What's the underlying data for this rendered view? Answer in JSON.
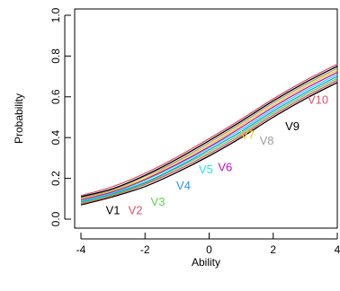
{
  "chart_data": {
    "type": "line",
    "xlabel": "Ability",
    "ylabel": "Probability",
    "xlim": [
      -4,
      4
    ],
    "ylim": [
      0,
      1
    ],
    "x_ticks": [
      -4,
      -2,
      0,
      2,
      4
    ],
    "x_tick_labels": [
      "-4",
      "-2",
      "0",
      "2",
      "4"
    ],
    "y_ticks": [
      0.0,
      0.2,
      0.4,
      0.6,
      0.8,
      1.0
    ],
    "y_tick_labels": [
      "0.0",
      "0.2",
      "0.4",
      "0.6",
      "0.8",
      "1.0"
    ],
    "grid": false,
    "x": [
      -4,
      -3,
      -2,
      -1,
      0,
      1,
      2,
      3,
      4
    ],
    "series": [
      {
        "name": "V1",
        "color": "#000000",
        "values": [
          0.07,
          0.11,
          0.16,
          0.23,
          0.31,
          0.4,
          0.5,
          0.59,
          0.67
        ]
      },
      {
        "name": "V2",
        "color": "#DF536B",
        "values": [
          0.075,
          0.115,
          0.17,
          0.24,
          0.32,
          0.41,
          0.51,
          0.6,
          0.68
        ]
      },
      {
        "name": "V3",
        "color": "#61D04F",
        "values": [
          0.08,
          0.12,
          0.175,
          0.25,
          0.33,
          0.42,
          0.52,
          0.61,
          0.69
        ]
      },
      {
        "name": "V4",
        "color": "#2297E6",
        "values": [
          0.085,
          0.125,
          0.18,
          0.255,
          0.34,
          0.43,
          0.53,
          0.62,
          0.7
        ]
      },
      {
        "name": "V5",
        "color": "#28E2E5",
        "values": [
          0.09,
          0.13,
          0.19,
          0.265,
          0.35,
          0.44,
          0.54,
          0.63,
          0.71
        ]
      },
      {
        "name": "V6",
        "color": "#CD0BBC",
        "values": [
          0.095,
          0.135,
          0.195,
          0.27,
          0.355,
          0.45,
          0.55,
          0.64,
          0.72
        ]
      },
      {
        "name": "V7",
        "color": "#F5C710",
        "values": [
          0.1,
          0.14,
          0.2,
          0.28,
          0.365,
          0.46,
          0.56,
          0.65,
          0.73
        ]
      },
      {
        "name": "V8",
        "color": "#9E9E9E",
        "values": [
          0.105,
          0.145,
          0.21,
          0.285,
          0.375,
          0.47,
          0.57,
          0.66,
          0.74
        ]
      },
      {
        "name": "V9",
        "color": "#000000",
        "values": [
          0.11,
          0.15,
          0.215,
          0.295,
          0.385,
          0.48,
          0.58,
          0.67,
          0.75
        ]
      },
      {
        "name": "V10",
        "color": "#DF536B",
        "values": [
          0.115,
          0.16,
          0.225,
          0.305,
          0.395,
          0.49,
          0.59,
          0.68,
          0.76
        ]
      }
    ],
    "curve_labels": [
      {
        "text": "V1",
        "color": "#000000",
        "x": -3.0,
        "y": 0.04
      },
      {
        "text": "V2",
        "color": "#DF536B",
        "x": -2.3,
        "y": 0.04
      },
      {
        "text": "V3",
        "color": "#61D04F",
        "x": -1.6,
        "y": 0.08
      },
      {
        "text": "V4",
        "color": "#2297E6",
        "x": -0.8,
        "y": 0.16
      },
      {
        "text": "V5",
        "color": "#28E2E5",
        "x": -0.1,
        "y": 0.24
      },
      {
        "text": "V6",
        "color": "#CD0BBC",
        "x": 0.5,
        "y": 0.25
      },
      {
        "text": "V7",
        "color": "#F5C710",
        "x": 1.2,
        "y": 0.41
      },
      {
        "text": "V8",
        "color": "#9E9E9E",
        "x": 1.8,
        "y": 0.38
      },
      {
        "text": "V9",
        "color": "#000000",
        "x": 2.6,
        "y": 0.45
      },
      {
        "text": "V10",
        "color": "#DF536B",
        "x": 3.4,
        "y": 0.58
      }
    ]
  }
}
